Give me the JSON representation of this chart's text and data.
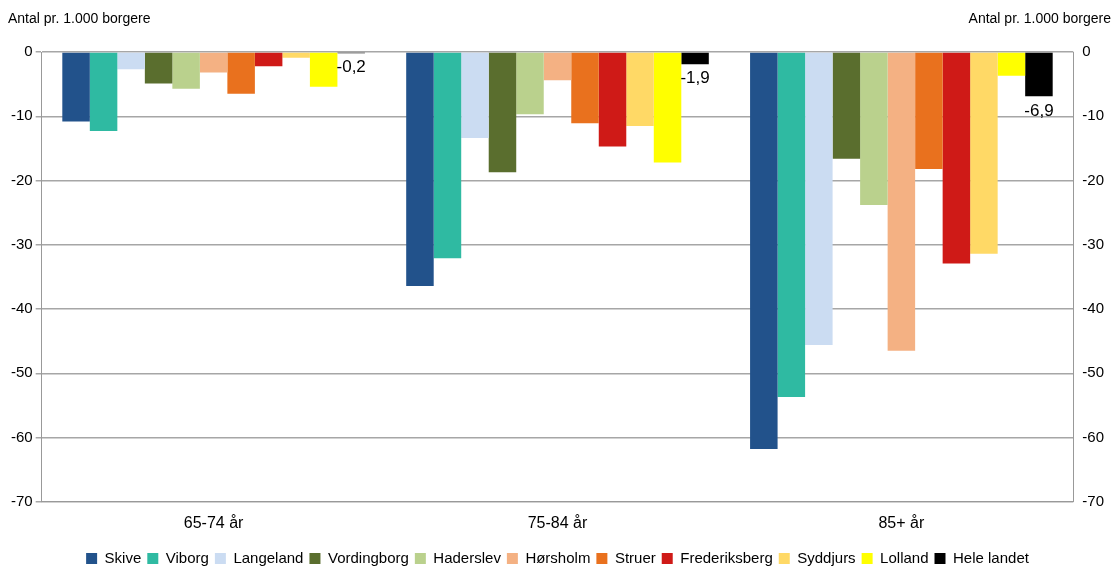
{
  "chart_data": {
    "type": "bar",
    "ylabel": "Antal pr. 1.000 borgere",
    "y2label": "Antal pr. 1.000 borgere",
    "categories": [
      "65-74 år",
      "75-84 år",
      "85+ år"
    ],
    "series": [
      {
        "name": "Skive",
        "color": "#22528b",
        "values": [
          -10.8,
          -36.4,
          -61.8
        ]
      },
      {
        "name": "Viborg",
        "color": "#2fbaa2",
        "values": [
          -12.3,
          -32.1,
          -53.7
        ]
      },
      {
        "name": "Langeland",
        "color": "#cbdcf2",
        "values": [
          -2.7,
          -13.4,
          -45.6
        ]
      },
      {
        "name": "Vordingborg",
        "color": "#5a6e2e",
        "values": [
          -4.9,
          -18.7,
          -16.6
        ]
      },
      {
        "name": "Haderslev",
        "color": "#bad18d",
        "values": [
          -5.7,
          -9.7,
          -23.8
        ]
      },
      {
        "name": "Hørsholm",
        "color": "#f4b183",
        "values": [
          -3.2,
          -4.4,
          -46.5
        ]
      },
      {
        "name": "Struer",
        "color": "#e9711e",
        "values": [
          -6.5,
          -11.1,
          -18.2
        ]
      },
      {
        "name": "Frederiksberg",
        "color": "#cf1a17",
        "values": [
          -2.2,
          -14.7,
          -32.9
        ]
      },
      {
        "name": "Syddjurs",
        "color": "#ffd966",
        "values": [
          -0.9,
          -11.5,
          -31.4
        ]
      },
      {
        "name": "Lolland",
        "color": "#ffff00",
        "values": [
          -5.4,
          -17.2,
          -3.7
        ]
      },
      {
        "name": "Hele landet",
        "color": "#000000",
        "values": [
          -0.2,
          -1.9,
          -6.9
        ],
        "value_labels": [
          "-0,2",
          "-1,9",
          "-6,9"
        ]
      }
    ],
    "ylim": [
      -70,
      0
    ],
    "yticks": [
      -70,
      -60,
      -50,
      -40,
      -30,
      -20,
      -10,
      0
    ],
    "y2lim": [
      -70,
      0
    ],
    "y2ticks": [
      -70,
      -60,
      -50,
      -40,
      -30,
      -20,
      -10,
      0
    ],
    "grid": "y",
    "legend": "bottom"
  }
}
